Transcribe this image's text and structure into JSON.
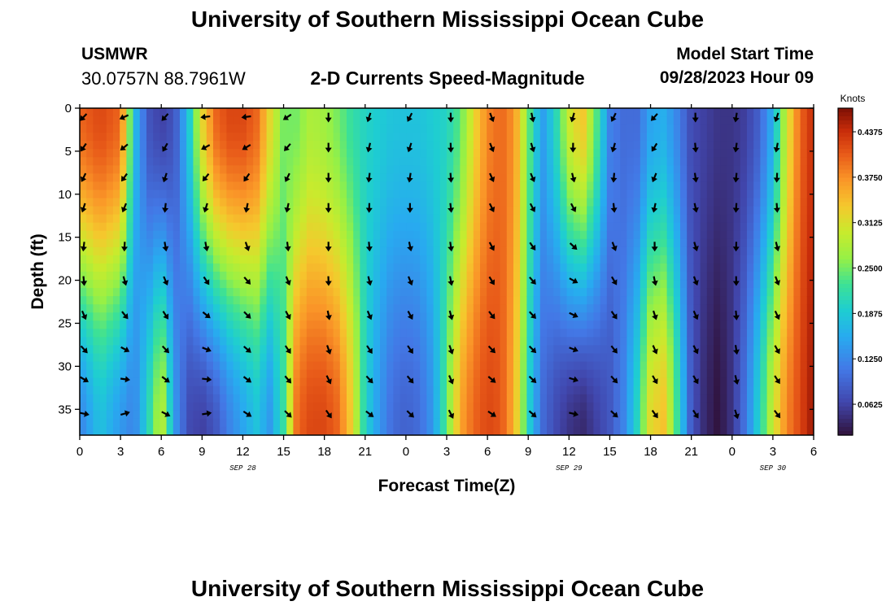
{
  "header": {
    "title": "University of Southern Mississippi Ocean Cube",
    "station_id": "USMWR",
    "station_coords": "30.0757N  88.7961W",
    "subtitle": "2-D Currents Speed-Magnitude",
    "model_label": "Model Start Time",
    "model_time": "09/28/2023 Hour 09"
  },
  "footer": {
    "title": "University of Southern Mississippi Ocean Cube"
  },
  "chart_data": {
    "type": "heatmap",
    "title": "2-D Currents Speed-Magnitude",
    "xlabel": "Forecast Time(Z)",
    "ylabel": "Depth (ft)",
    "x_ticks": [
      "0",
      "3",
      "6",
      "9",
      "12",
      "15",
      "18",
      "21",
      "0",
      "3",
      "6",
      "9",
      "12",
      "15",
      "18",
      "21",
      "0",
      "3",
      "6"
    ],
    "date_labels": [
      {
        "label": "SEP 28",
        "tick_index": 4
      },
      {
        "label": "SEP 29",
        "tick_index": 12
      },
      {
        "label": "SEP 30",
        "tick_index": 17
      }
    ],
    "y_ticks": [
      0,
      5,
      10,
      15,
      20,
      25,
      30,
      35
    ],
    "ylim": [
      0,
      38
    ],
    "x_range_hours": [
      0,
      54
    ],
    "colorbar": {
      "unit": "Knots",
      "ticks": [
        "0.4375",
        "0.3750",
        "0.3125",
        "0.2500",
        "0.1875",
        "0.1250",
        "0.0625"
      ],
      "vmin": 0.02,
      "vmax": 0.47
    },
    "speed_profile": {
      "hours": [
        0,
        1.5,
        3,
        4,
        5,
        6,
        7,
        8,
        9,
        10,
        11,
        12,
        13,
        14,
        15,
        16,
        17,
        18,
        19,
        20,
        21,
        22,
        23,
        24,
        25,
        26,
        27,
        28,
        29,
        30,
        31,
        32,
        33,
        34,
        35,
        36,
        37,
        38,
        39,
        40,
        41,
        42,
        43,
        44,
        45,
        46,
        47,
        48,
        49,
        50,
        51,
        52,
        53,
        54
      ],
      "surface": [
        0.4,
        0.42,
        0.4,
        0.18,
        0.08,
        0.06,
        0.08,
        0.18,
        0.32,
        0.4,
        0.42,
        0.42,
        0.4,
        0.32,
        0.25,
        0.25,
        0.28,
        0.27,
        0.25,
        0.22,
        0.2,
        0.19,
        0.18,
        0.18,
        0.18,
        0.19,
        0.2,
        0.24,
        0.32,
        0.38,
        0.4,
        0.37,
        0.25,
        0.14,
        0.2,
        0.3,
        0.34,
        0.24,
        0.12,
        0.1,
        0.1,
        0.15,
        0.16,
        0.12,
        0.07,
        0.06,
        0.05,
        0.05,
        0.06,
        0.09,
        0.16,
        0.3,
        0.4,
        0.44
      ],
      "bottom": [
        0.12,
        0.18,
        0.14,
        0.12,
        0.2,
        0.3,
        0.14,
        0.07,
        0.06,
        0.08,
        0.12,
        0.15,
        0.18,
        0.14,
        0.22,
        0.4,
        0.42,
        0.42,
        0.4,
        0.33,
        0.2,
        0.14,
        0.1,
        0.09,
        0.1,
        0.14,
        0.24,
        0.36,
        0.4,
        0.42,
        0.41,
        0.35,
        0.2,
        0.1,
        0.07,
        0.05,
        0.04,
        0.06,
        0.08,
        0.12,
        0.2,
        0.32,
        0.34,
        0.22,
        0.08,
        0.04,
        0.02,
        0.05,
        0.11,
        0.2,
        0.3,
        0.38,
        0.42,
        0.46
      ]
    },
    "arrow_directions_deg": {
      "hours": [
        0,
        3,
        6,
        9,
        12,
        15,
        18,
        21,
        24,
        27,
        30,
        33,
        36,
        39,
        42,
        45,
        48,
        51
      ],
      "near_surface": [
        225,
        250,
        225,
        270,
        270,
        240,
        180,
        200,
        210,
        180,
        160,
        170,
        200,
        210,
        225,
        180,
        190,
        200
      ],
      "mid_depth": [
        180,
        170,
        160,
        150,
        140,
        160,
        180,
        170,
        160,
        170,
        150,
        140,
        120,
        150,
        170,
        160,
        180,
        160
      ],
      "near_bottom": [
        90,
        60,
        110,
        70,
        120,
        130,
        140,
        120,
        130,
        150,
        120,
        130,
        100,
        130,
        140,
        145,
        160,
        140
      ]
    }
  }
}
